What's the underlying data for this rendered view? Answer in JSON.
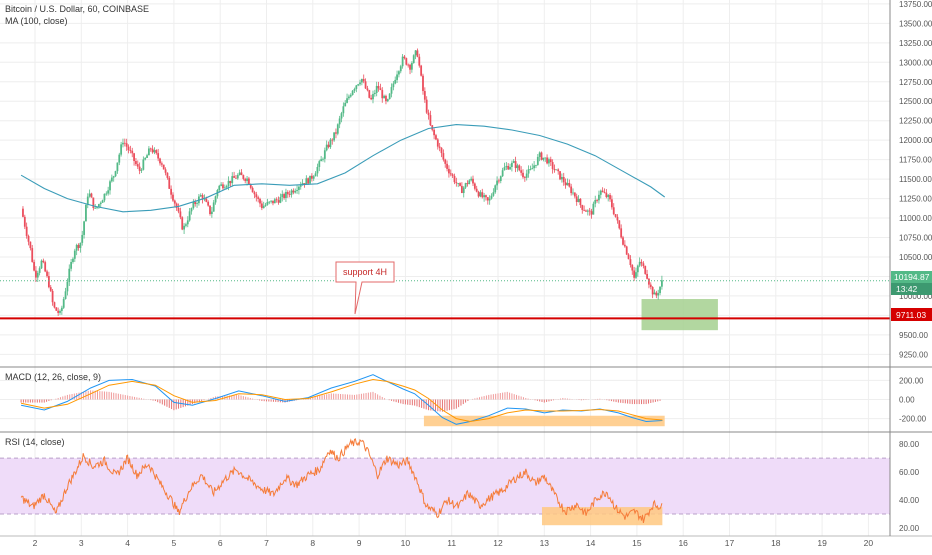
{
  "chart_data": [
    {
      "type": "candlestick",
      "title": "Bitcoin / U.S. Dollar, 60, COINBASE",
      "indicator_label": "MA (100, close)",
      "yticks": [
        9250,
        9500,
        9750,
        10000,
        10250,
        10500,
        10750,
        11000,
        11250,
        11500,
        11750,
        12000,
        12250,
        12500,
        12750,
        13000,
        13250,
        13500,
        13750
      ],
      "ylim": [
        9100,
        13800
      ],
      "xticks": [
        "2",
        "3",
        "4",
        "5",
        "6",
        "7",
        "8",
        "9",
        "10",
        "11",
        "12",
        "13",
        "14",
        "15",
        "16",
        "17",
        "18",
        "19",
        "20"
      ],
      "last_price": "10194.87",
      "countdown": "13:42",
      "support_price": 9711.03,
      "support_price_label": "9711.03",
      "annotation": "support 4H",
      "price_path": [
        [
          1.7,
          11120
        ],
        [
          1.9,
          10600
        ],
        [
          2.0,
          10250
        ],
        [
          2.15,
          10450
        ],
        [
          2.3,
          10150
        ],
        [
          2.4,
          9850
        ],
        [
          2.55,
          9760
        ],
        [
          2.7,
          10200
        ],
        [
          2.85,
          10600
        ],
        [
          3.0,
          10700
        ],
        [
          3.15,
          11350
        ],
        [
          3.3,
          11100
        ],
        [
          3.5,
          11300
        ],
        [
          3.7,
          11550
        ],
        [
          3.9,
          12000
        ],
        [
          4.05,
          11850
        ],
        [
          4.25,
          11600
        ],
        [
          4.5,
          11900
        ],
        [
          4.75,
          11700
        ],
        [
          4.9,
          11400
        ],
        [
          5.05,
          11150
        ],
        [
          5.2,
          10850
        ],
        [
          5.4,
          11150
        ],
        [
          5.6,
          11300
        ],
        [
          5.8,
          11050
        ],
        [
          5.95,
          11400
        ],
        [
          6.15,
          11450
        ],
        [
          6.4,
          11550
        ],
        [
          6.6,
          11500
        ],
        [
          6.75,
          11300
        ],
        [
          6.9,
          11150
        ],
        [
          7.1,
          11200
        ],
        [
          7.3,
          11250
        ],
        [
          7.55,
          11350
        ],
        [
          7.75,
          11450
        ],
        [
          7.95,
          11500
        ],
        [
          8.15,
          11700
        ],
        [
          8.3,
          11900
        ],
        [
          8.5,
          12100
        ],
        [
          8.65,
          12400
        ],
        [
          8.85,
          12650
        ],
        [
          9.05,
          12800
        ],
        [
          9.25,
          12500
        ],
        [
          9.4,
          12700
        ],
        [
          9.6,
          12450
        ],
        [
          9.8,
          12850
        ],
        [
          9.95,
          13050
        ],
        [
          10.1,
          12950
        ],
        [
          10.25,
          13150
        ],
        [
          10.4,
          12550
        ],
        [
          10.55,
          12150
        ],
        [
          10.7,
          11950
        ],
        [
          10.85,
          11700
        ],
        [
          11.0,
          11550
        ],
        [
          11.2,
          11350
        ],
        [
          11.4,
          11500
        ],
        [
          11.6,
          11300
        ],
        [
          11.8,
          11200
        ],
        [
          11.95,
          11450
        ],
        [
          12.15,
          11650
        ],
        [
          12.35,
          11700
        ],
        [
          12.55,
          11550
        ],
        [
          12.7,
          11600
        ],
        [
          12.9,
          11800
        ],
        [
          13.05,
          11750
        ],
        [
          13.25,
          11600
        ],
        [
          13.45,
          11450
        ],
        [
          13.65,
          11300
        ],
        [
          13.8,
          11150
        ],
        [
          14.0,
          11050
        ],
        [
          14.2,
          11350
        ],
        [
          14.4,
          11250
        ],
        [
          14.55,
          11000
        ],
        [
          14.7,
          10700
        ],
        [
          14.85,
          10450
        ],
        [
          14.95,
          10200
        ],
        [
          15.05,
          10450
        ],
        [
          15.2,
          10300
        ],
        [
          15.3,
          10100
        ],
        [
          15.4,
          9980
        ],
        [
          15.55,
          10190
        ]
      ],
      "ma_path": [
        [
          1.7,
          11550
        ],
        [
          2.2,
          11380
        ],
        [
          2.7,
          11250
        ],
        [
          3.3,
          11150
        ],
        [
          3.9,
          11080
        ],
        [
          4.5,
          11100
        ],
        [
          5.1,
          11150
        ],
        [
          5.7,
          11260
        ],
        [
          6.3,
          11420
        ],
        [
          6.9,
          11440
        ],
        [
          7.5,
          11420
        ],
        [
          8.1,
          11440
        ],
        [
          8.7,
          11580
        ],
        [
          9.3,
          11800
        ],
        [
          9.9,
          12000
        ],
        [
          10.5,
          12150
        ],
        [
          11.1,
          12200
        ],
        [
          11.7,
          12180
        ],
        [
          12.3,
          12130
        ],
        [
          12.9,
          12060
        ],
        [
          13.5,
          11950
        ],
        [
          14.1,
          11800
        ],
        [
          14.7,
          11600
        ],
        [
          15.3,
          11400
        ],
        [
          15.6,
          11270
        ]
      ]
    },
    {
      "type": "line",
      "title": "MACD (12, 26, close, 9)",
      "yticks": [
        200,
        0,
        -200
      ],
      "ylim": [
        -330,
        330
      ],
      "macd_path": [
        [
          1.7,
          -60
        ],
        [
          2.2,
          -110
        ],
        [
          2.7,
          -20
        ],
        [
          3.2,
          120
        ],
        [
          3.6,
          200
        ],
        [
          4.1,
          210
        ],
        [
          4.6,
          140
        ],
        [
          5.0,
          -30
        ],
        [
          5.4,
          -60
        ],
        [
          5.9,
          10
        ],
        [
          6.4,
          90
        ],
        [
          6.9,
          40
        ],
        [
          7.4,
          -20
        ],
        [
          7.9,
          20
        ],
        [
          8.4,
          120
        ],
        [
          8.9,
          190
        ],
        [
          9.3,
          260
        ],
        [
          9.6,
          190
        ],
        [
          9.95,
          110
        ],
        [
          10.2,
          60
        ],
        [
          10.5,
          -60
        ],
        [
          10.8,
          -190
        ],
        [
          11.1,
          -260
        ],
        [
          11.4,
          -230
        ],
        [
          11.8,
          -170
        ],
        [
          12.2,
          -90
        ],
        [
          12.6,
          -100
        ],
        [
          13.0,
          -140
        ],
        [
          13.4,
          -110
        ],
        [
          13.8,
          -120
        ],
        [
          14.2,
          -100
        ],
        [
          14.6,
          -140
        ],
        [
          14.9,
          -190
        ],
        [
          15.2,
          -230
        ],
        [
          15.55,
          -220
        ]
      ],
      "signal_path": [
        [
          1.7,
          -40
        ],
        [
          2.2,
          -90
        ],
        [
          2.7,
          -50
        ],
        [
          3.2,
          60
        ],
        [
          3.6,
          150
        ],
        [
          4.1,
          190
        ],
        [
          4.6,
          150
        ],
        [
          5.0,
          40
        ],
        [
          5.4,
          -30
        ],
        [
          5.9,
          -10
        ],
        [
          6.4,
          60
        ],
        [
          6.9,
          50
        ],
        [
          7.4,
          0
        ],
        [
          7.9,
          10
        ],
        [
          8.4,
          80
        ],
        [
          8.9,
          160
        ],
        [
          9.3,
          210
        ],
        [
          9.6,
          190
        ],
        [
          9.95,
          140
        ],
        [
          10.2,
          100
        ],
        [
          10.5,
          10
        ],
        [
          10.8,
          -110
        ],
        [
          11.1,
          -200
        ],
        [
          11.4,
          -230
        ],
        [
          11.8,
          -200
        ],
        [
          12.2,
          -140
        ],
        [
          12.6,
          -110
        ],
        [
          13.0,
          -120
        ],
        [
          13.4,
          -120
        ],
        [
          13.8,
          -115
        ],
        [
          14.2,
          -105
        ],
        [
          14.6,
          -120
        ],
        [
          14.9,
          -160
        ],
        [
          15.2,
          -200
        ],
        [
          15.55,
          -215
        ]
      ]
    },
    {
      "type": "line",
      "title": "RSI (14, close)",
      "yticks": [
        80,
        60,
        40,
        20
      ],
      "ylim": [
        15,
        88
      ],
      "rsi_path": [
        [
          1.7,
          42
        ],
        [
          1.95,
          35
        ],
        [
          2.2,
          44
        ],
        [
          2.45,
          30
        ],
        [
          2.7,
          50
        ],
        [
          2.9,
          62
        ],
        [
          3.05,
          72
        ],
        [
          3.25,
          64
        ],
        [
          3.5,
          68
        ],
        [
          3.75,
          57
        ],
        [
          4.0,
          70
        ],
        [
          4.2,
          58
        ],
        [
          4.45,
          66
        ],
        [
          4.7,
          52
        ],
        [
          4.95,
          40
        ],
        [
          5.1,
          31
        ],
        [
          5.35,
          48
        ],
        [
          5.6,
          58
        ],
        [
          5.85,
          45
        ],
        [
          6.1,
          55
        ],
        [
          6.35,
          62
        ],
        [
          6.6,
          55
        ],
        [
          6.9,
          48
        ],
        [
          7.15,
          44
        ],
        [
          7.4,
          56
        ],
        [
          7.65,
          51
        ],
        [
          7.9,
          58
        ],
        [
          8.15,
          62
        ],
        [
          8.35,
          76
        ],
        [
          8.55,
          70
        ],
        [
          8.8,
          80
        ],
        [
          9.05,
          82
        ],
        [
          9.2,
          74
        ],
        [
          9.4,
          58
        ],
        [
          9.6,
          70
        ],
        [
          9.85,
          65
        ],
        [
          10.05,
          68
        ],
        [
          10.25,
          54
        ],
        [
          10.45,
          36
        ],
        [
          10.7,
          30
        ],
        [
          10.9,
          40
        ],
        [
          11.15,
          35
        ],
        [
          11.35,
          45
        ],
        [
          11.6,
          36
        ],
        [
          11.85,
          42
        ],
        [
          12.1,
          47
        ],
        [
          12.35,
          55
        ],
        [
          12.6,
          60
        ],
        [
          12.8,
          52
        ],
        [
          13.0,
          57
        ],
        [
          13.25,
          42
        ],
        [
          13.45,
          32
        ],
        [
          13.7,
          37
        ],
        [
          13.9,
          30
        ],
        [
          14.15,
          42
        ],
        [
          14.35,
          46
        ],
        [
          14.55,
          34
        ],
        [
          14.75,
          28
        ],
        [
          14.95,
          32
        ],
        [
          15.15,
          26
        ],
        [
          15.35,
          37
        ],
        [
          15.55,
          35
        ]
      ]
    }
  ],
  "colors": {
    "candle_up": "#53b987",
    "candle_down": "#eb4d5c",
    "ma": "#3a9cb8",
    "macd": "#2196f3",
    "signal": "#ff9800",
    "support_line": "#d50000",
    "rsi": "#f57c3a",
    "rsi_band": "#efdcf9",
    "highlight_green": "#a5d08f",
    "highlight_orange": "#ffc880",
    "price_tag": "#53b987",
    "grid": "#eeeeee"
  }
}
